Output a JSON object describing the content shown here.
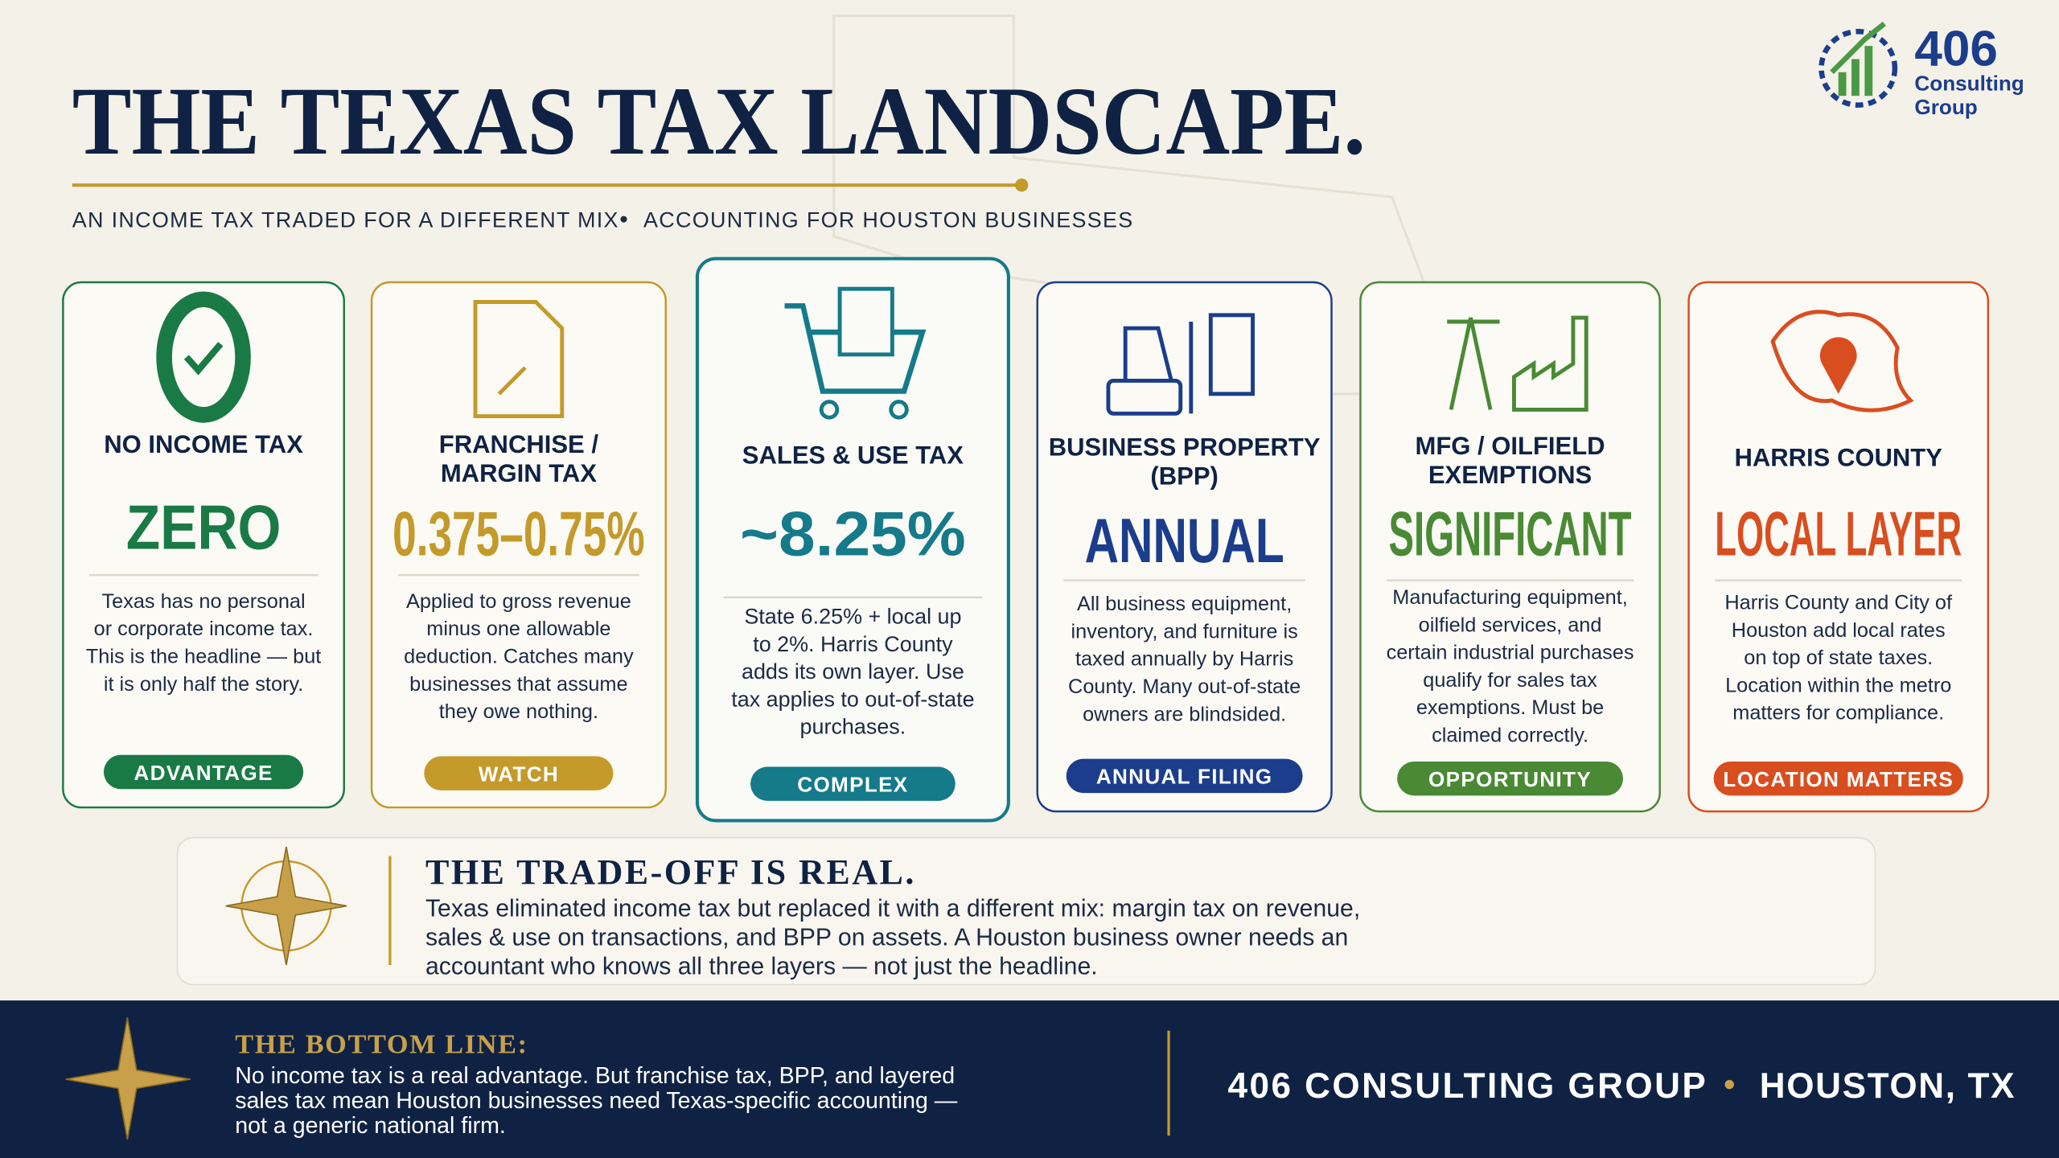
{
  "header": {
    "title": "THE TEXAS TAX LANDSCAPE.",
    "subtitle": [
      "AN INCOME TAX TRADED FOR A DIFFERENT MIX",
      "ACCOUNTING FOR HOUSTON BUSINESSES"
    ],
    "logo": {
      "number": "406",
      "lines": [
        "Consulting",
        "Group"
      ]
    }
  },
  "cards": [
    {
      "heading": [
        "NO INCOME TAX"
      ],
      "value": "ZERO",
      "description": [
        "Texas has no personal",
        "or corporate income tax.",
        "This is the headline — but",
        "it is only half the story."
      ],
      "tag": "ADVANTAGE",
      "color": "#1a7a45"
    },
    {
      "heading": [
        "FRANCHISE /",
        "MARGIN TAX"
      ],
      "value": "0.375–0.75%",
      "description": [
        "Applied to gross revenue",
        "minus one allowable",
        "deduction. Catches many",
        "businesses that assume",
        "they owe nothing."
      ],
      "tag": "WATCH",
      "color": "#c49a2a"
    },
    {
      "heading": [
        "SALES & USE TAX"
      ],
      "value": "~8.25%",
      "description": [
        "State 6.25% + local up",
        "to 2%. Harris County",
        "adds its own layer. Use",
        "tax applies to out-of-state",
        "purchases."
      ],
      "tag": "COMPLEX",
      "color": "#157a8a"
    },
    {
      "heading": [
        "BUSINESS PROPERTY",
        "(BPP)"
      ],
      "value": "ANNUAL",
      "description": [
        "All business equipment,",
        "inventory, and furniture is",
        "taxed annually by Harris",
        "County. Many out-of-state",
        "owners are blindsided."
      ],
      "tag": "ANNUAL FILING",
      "color": "#1b3d8c"
    },
    {
      "heading": [
        "MFG / OILFIELD",
        "EXEMPTIONS"
      ],
      "value": "SIGNIFICANT",
      "description": [
        "Manufacturing equipment,",
        "oilfield services, and",
        "certain industrial purchases",
        "qualify for sales tax",
        "exemptions. Must be",
        "claimed correctly."
      ],
      "tag": "OPPORTUNITY",
      "color": "#4a8a35"
    },
    {
      "heading": [
        "HARRIS COUNTY"
      ],
      "value": "LOCAL LAYER",
      "description": [
        "Harris County and City of",
        "Houston add local rates",
        "on top of state taxes.",
        "Location within the metro",
        "matters for compliance."
      ],
      "tag": "LOCATION MATTERS",
      "color": "#d94e1f"
    }
  ],
  "callout": {
    "title": "THE TRADE-OFF IS REAL.",
    "lines": [
      "Texas eliminated income tax but replaced it with a different mix: margin tax on revenue,",
      "sales & use on transactions, and BPP on assets. A Houston business owner needs an",
      "accountant who knows all three layers — not just the headline."
    ]
  },
  "footer": {
    "label": "THE BOTTOM LINE:",
    "lines": [
      "No income tax is a real advantage. But franchise tax, BPP, and layered",
      "sales tax mean Houston businesses need Texas-specific accounting —",
      "not a generic national firm."
    ],
    "brand": "406 CONSULTING GROUP",
    "location": "HOUSTON, TX"
  }
}
